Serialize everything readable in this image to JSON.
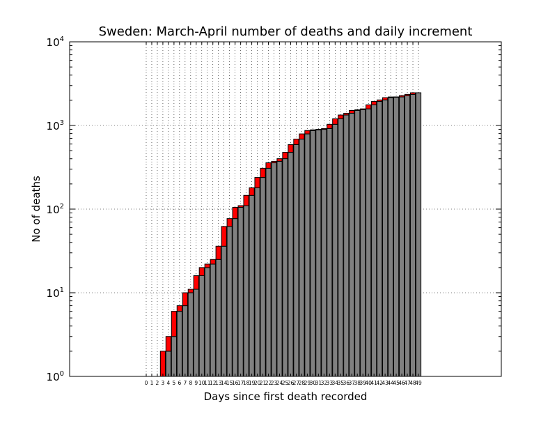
{
  "chart_data": {
    "type": "bar",
    "title": "Sweden: March-April number of deaths and daily increment",
    "xlabel": "Days since first death recorded",
    "ylabel": "No of deaths",
    "yscale": "log",
    "ylim": [
      1,
      10000
    ],
    "grid": true,
    "legend": "none",
    "x_start_tick": 0,
    "categories": [
      "0",
      "1",
      "2",
      "3",
      "4",
      "5",
      "6",
      "7",
      "8",
      "9",
      "10",
      "11",
      "12",
      "13",
      "14",
      "15",
      "16",
      "17",
      "18",
      "19",
      "20",
      "21",
      "22",
      "23",
      "24",
      "25",
      "26",
      "27",
      "28",
      "29",
      "30",
      "31",
      "32",
      "33",
      "34",
      "35",
      "36",
      "37",
      "38",
      "39",
      "40",
      "41",
      "42",
      "43",
      "44",
      "45",
      "46",
      "47",
      "48",
      "49"
    ],
    "y_ticks": [
      {
        "base": "10",
        "exp": "0",
        "value": 1
      },
      {
        "base": "10",
        "exp": "1",
        "value": 10
      },
      {
        "base": "10",
        "exp": "2",
        "value": 100
      },
      {
        "base": "10",
        "exp": "3",
        "value": 1000
      },
      {
        "base": "10",
        "exp": "4",
        "value": 10000
      }
    ],
    "series": [
      {
        "values": [
          0,
          0,
          0,
          1,
          2,
          3,
          6,
          7,
          10,
          11,
          16,
          20,
          22,
          25,
          36,
          62,
          77,
          105,
          110,
          146,
          180,
          239,
          308,
          358,
          373,
          401,
          477,
          591,
          687,
          793,
          870,
          887,
          899,
          919,
          1033,
          1203,
          1333,
          1400,
          1511,
          1540,
          1580,
          1765,
          1937,
          2021,
          2152,
          2192,
          2194,
          2274,
          2355,
          2462
        ],
        "color": "#808080"
      },
      {
        "values": [
          0,
          0,
          0,
          1,
          1,
          3,
          1,
          3,
          1,
          5,
          4,
          2,
          3,
          11,
          26,
          15,
          28,
          5,
          36,
          34,
          59,
          69,
          50,
          15,
          28,
          76,
          114,
          96,
          106,
          77,
          17,
          12,
          20,
          114,
          170,
          130,
          67,
          111,
          29,
          40,
          185,
          172,
          84,
          131,
          40,
          2,
          80,
          81,
          107,
          0
        ],
        "color": "#ff0000"
      }
    ]
  }
}
